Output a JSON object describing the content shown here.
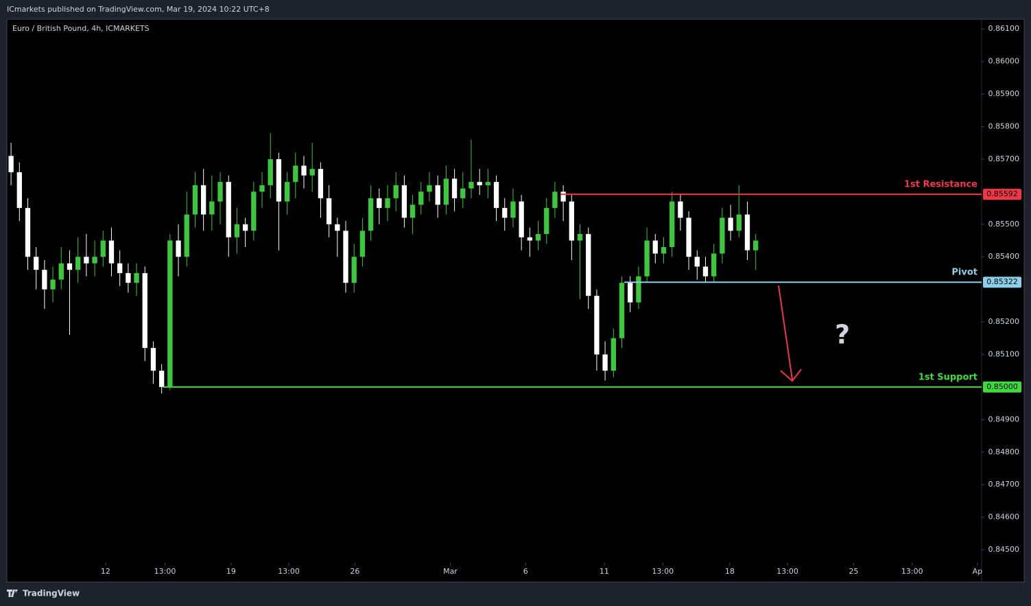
{
  "header": "ICmarkets published on TradingView.com, Mar 19, 2024 10:22 UTC+8",
  "footer": "TradingView",
  "chart_data": {
    "type": "candlestick",
    "title": "Euro / British Pound, 4h, ICMARKETS",
    "up_color": "#3cc83c",
    "down_color": "#ffffff",
    "x": [
      0,
      1,
      2,
      3,
      4,
      5,
      6,
      7,
      8,
      9,
      10,
      11,
      12,
      13,
      14,
      15,
      16,
      17,
      18,
      19,
      20,
      21,
      22,
      23,
      24,
      25,
      26,
      27,
      28,
      29,
      30,
      31,
      32,
      33,
      34,
      35,
      36,
      37,
      38,
      39,
      40,
      41,
      42,
      43,
      44,
      45,
      46,
      47,
      48,
      49,
      50,
      51,
      52,
      53,
      54,
      55,
      56,
      57,
      58,
      59,
      60,
      61,
      62,
      63,
      64,
      65,
      66,
      67,
      68,
      69,
      70,
      71,
      72,
      73,
      74,
      75,
      76,
      77,
      78,
      79,
      80,
      81,
      82,
      83,
      84,
      85,
      86,
      87,
      88,
      89
    ],
    "open": [
      0.8571,
      0.8566,
      0.8555,
      0.854,
      0.8536,
      0.853,
      0.8533,
      0.8538,
      0.8536,
      0.854,
      0.8538,
      0.854,
      0.8545,
      0.8538,
      0.8535,
      0.8532,
      0.8535,
      0.8512,
      0.8505,
      0.85,
      0.8545,
      0.854,
      0.8553,
      0.8562,
      0.8553,
      0.8557,
      0.8563,
      0.8546,
      0.855,
      0.8548,
      0.856,
      0.8562,
      0.857,
      0.8557,
      0.8563,
      0.8568,
      0.8565,
      0.8567,
      0.8558,
      0.855,
      0.8548,
      0.8532,
      0.854,
      0.8548,
      0.8558,
      0.8555,
      0.8558,
      0.8562,
      0.8552,
      0.8556,
      0.856,
      0.8562,
      0.8556,
      0.8564,
      0.8558,
      0.8561,
      0.8563,
      0.8562,
      0.8563,
      0.8555,
      0.8552,
      0.8557,
      0.8546,
      0.8545,
      0.8547,
      0.8555,
      0.856,
      0.8557,
      0.8545,
      0.8547,
      0.8528,
      0.851,
      0.8505,
      0.8515,
      0.8532,
      0.8526,
      0.8534,
      0.8545,
      0.8541,
      0.8543,
      0.8557,
      0.8552,
      0.854,
      0.8537,
      0.8534,
      0.8541,
      0.8552,
      0.8548,
      0.8553,
      0.8542
    ],
    "high": [
      0.8575,
      0.8569,
      0.8558,
      0.8543,
      0.8539,
      0.8537,
      0.8543,
      0.8542,
      0.8546,
      0.8547,
      0.8545,
      0.8548,
      0.8549,
      0.8542,
      0.8538,
      0.8538,
      0.8537,
      0.8514,
      0.8507,
      0.8547,
      0.855,
      0.856,
      0.8566,
      0.8567,
      0.8565,
      0.8566,
      0.8565,
      0.8555,
      0.8552,
      0.8563,
      0.8566,
      0.8578,
      0.8572,
      0.8566,
      0.8572,
      0.8571,
      0.8575,
      0.8569,
      0.8562,
      0.8552,
      0.8551,
      0.8544,
      0.8552,
      0.8562,
      0.8561,
      0.8562,
      0.8566,
      0.8565,
      0.8559,
      0.8563,
      0.8566,
      0.8565,
      0.8568,
      0.8567,
      0.8566,
      0.8576,
      0.8567,
      0.8567,
      0.8565,
      0.8558,
      0.8561,
      0.8559,
      0.8549,
      0.8551,
      0.8558,
      0.8563,
      0.8562,
      0.8559,
      0.855,
      0.8549,
      0.853,
      0.8514,
      0.8518,
      0.8534,
      0.8534,
      0.8537,
      0.8549,
      0.8547,
      0.8546,
      0.856,
      0.8559,
      0.8554,
      0.8542,
      0.854,
      0.8544,
      0.8555,
      0.8556,
      0.8562,
      0.8557,
      0.8547
    ],
    "low": [
      0.8562,
      0.8551,
      0.8536,
      0.853,
      0.8524,
      0.8526,
      0.853,
      0.8516,
      0.8532,
      0.8534,
      0.8534,
      0.8537,
      0.8534,
      0.8531,
      0.8529,
      0.8528,
      0.8508,
      0.8501,
      0.8498,
      0.8499,
      0.8534,
      0.8537,
      0.8549,
      0.8548,
      0.8548,
      0.855,
      0.854,
      0.8541,
      0.8543,
      0.8545,
      0.8555,
      0.8558,
      0.8542,
      0.8553,
      0.8558,
      0.8561,
      0.856,
      0.8552,
      0.8546,
      0.854,
      0.8529,
      0.8529,
      0.8537,
      0.8545,
      0.855,
      0.8551,
      0.8554,
      0.8549,
      0.8547,
      0.8553,
      0.8557,
      0.8552,
      0.8553,
      0.8554,
      0.8555,
      0.8558,
      0.8559,
      0.8558,
      0.8551,
      0.8548,
      0.8549,
      0.8542,
      0.854,
      0.8542,
      0.8544,
      0.8552,
      0.8551,
      0.8539,
      0.8527,
      0.8524,
      0.8505,
      0.8502,
      0.8503,
      0.8512,
      0.8523,
      0.8524,
      0.8532,
      0.8538,
      0.8538,
      0.854,
      0.8548,
      0.8536,
      0.8533,
      0.8532,
      0.8532,
      0.8538,
      0.8545,
      0.8546,
      0.8539,
      0.8536
    ],
    "close": [
      0.8566,
      0.8555,
      0.854,
      0.8536,
      0.853,
      0.8533,
      0.8538,
      0.8536,
      0.854,
      0.8538,
      0.854,
      0.8545,
      0.8538,
      0.8535,
      0.8532,
      0.8535,
      0.8512,
      0.8505,
      0.85,
      0.8545,
      0.854,
      0.8553,
      0.8562,
      0.8553,
      0.8557,
      0.8563,
      0.8546,
      0.855,
      0.8548,
      0.856,
      0.8562,
      0.857,
      0.8557,
      0.8563,
      0.8568,
      0.8565,
      0.8567,
      0.8558,
      0.855,
      0.8548,
      0.8532,
      0.854,
      0.8548,
      0.8558,
      0.8555,
      0.8558,
      0.8562,
      0.8552,
      0.8556,
      0.856,
      0.8562,
      0.8556,
      0.8564,
      0.8558,
      0.8561,
      0.8563,
      0.8562,
      0.8563,
      0.8555,
      0.8552,
      0.8557,
      0.8546,
      0.8545,
      0.8547,
      0.8555,
      0.856,
      0.8557,
      0.8545,
      0.8547,
      0.8528,
      0.851,
      0.8505,
      0.8515,
      0.8532,
      0.8526,
      0.8534,
      0.8545,
      0.8541,
      0.8543,
      0.8557,
      0.8552,
      0.854,
      0.8537,
      0.8534,
      0.8541,
      0.8552,
      0.8548,
      0.8553,
      0.8542,
      0.8545
    ],
    "xlim": [
      -0.5,
      116
    ],
    "xticks": [
      {
        "value": 11.3,
        "label": "12"
      },
      {
        "value": 18.4,
        "label": "13:00"
      },
      {
        "value": 26.3,
        "label": "19"
      },
      {
        "value": 33.2,
        "label": "13:00"
      },
      {
        "value": 41.1,
        "label": "26"
      },
      {
        "value": 52.5,
        "label": "Mar"
      },
      {
        "value": 61.5,
        "label": "6"
      },
      {
        "value": 70.9,
        "label": "11"
      },
      {
        "value": 77.9,
        "label": "13:00"
      },
      {
        "value": 85.9,
        "label": "18"
      },
      {
        "value": 92.8,
        "label": "13:00"
      },
      {
        "value": 100.7,
        "label": "25"
      },
      {
        "value": 107.7,
        "label": "13:00"
      },
      {
        "value": 115.5,
        "label": "Ap"
      }
    ],
    "ylim": [
      0.8446,
      0.8613
    ],
    "yticks": [
      {
        "value": 0.861,
        "label": "0.86100"
      },
      {
        "value": 0.86,
        "label": "0.86000"
      },
      {
        "value": 0.859,
        "label": "0.85900"
      },
      {
        "value": 0.858,
        "label": "0.85800"
      },
      {
        "value": 0.857,
        "label": "0.85700"
      },
      {
        "value": 0.855,
        "label": "0.85500"
      },
      {
        "value": 0.854,
        "label": "0.85400"
      },
      {
        "value": 0.852,
        "label": "0.85200"
      },
      {
        "value": 0.851,
        "label": "0.85100"
      },
      {
        "value": 0.849,
        "label": "0.84900"
      },
      {
        "value": 0.848,
        "label": "0.84800"
      },
      {
        "value": 0.847,
        "label": "0.84700"
      },
      {
        "value": 0.846,
        "label": "0.84600"
      },
      {
        "value": 0.845,
        "label": "0.84500"
      }
    ],
    "levels": [
      {
        "name": "1st Resistance",
        "value": 0.85592,
        "value_label": "0.85592",
        "start": 65.7,
        "color": "#f23645"
      },
      {
        "name": "Pivot",
        "value": 0.85322,
        "value_label": "0.85322",
        "start": 73.3,
        "color": "#8ccfe8"
      },
      {
        "name": "1st Support",
        "value": 0.85,
        "value_label": "0.85000",
        "start": 18.2,
        "color": "#3ddc3d"
      }
    ],
    "annotation": "?"
  }
}
